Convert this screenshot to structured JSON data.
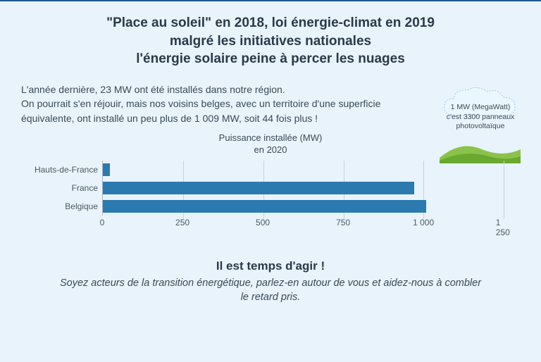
{
  "header": {
    "line1": "\"Place au soleil\" en 2018, loi énergie-climat en 2019",
    "line2": "malgré les initiatives nationales",
    "line3": "l'énergie solaire peine à percer les nuages"
  },
  "intro": {
    "line1": "L'année dernière, 23 MW ont été installés dans notre région.",
    "line2": "On pourrait s'en réjouir, mais nos voisins belges, avec un territoire d'une superficie équivalente, ont installé un peu plus de 1 009 MW, soit 44 fois plus !"
  },
  "callout": {
    "line1": "1 MW (MegaWatt)",
    "line2": "c'est 3300 panneaux",
    "line3": "photovoltaïque",
    "cloud_color": "#eaf7ff",
    "cloud_stroke": "#9acbe8",
    "hill_color_back": "#8bc34a",
    "hill_color_front": "#6aa82f"
  },
  "chart": {
    "type": "bar-horizontal",
    "title_line1": "Puissance installée (MW)",
    "title_line2": "en 2020",
    "categories": [
      "Hauts-de-France",
      "France",
      "Belgique"
    ],
    "values": [
      23,
      970,
      1009
    ],
    "bar_color": "#2a7ab0",
    "xlim": [
      0,
      1300
    ],
    "xticks": [
      0,
      250,
      500,
      750,
      1000,
      1250
    ],
    "xtick_labels": [
      "0",
      "250",
      "500",
      "750",
      "1 000",
      "1 250"
    ],
    "grid_color": "#c8d2dc",
    "axis_color": "#a8b4c0",
    "label_fontsize": 12,
    "title_fontsize": 13,
    "background_color": "#e8f3fb"
  },
  "footer": {
    "title": "Il est temps d'agir !",
    "text": "Soyez acteurs de la transition énergétique, parlez-en autour de vous et aidez-nous à combler le retard pris."
  }
}
